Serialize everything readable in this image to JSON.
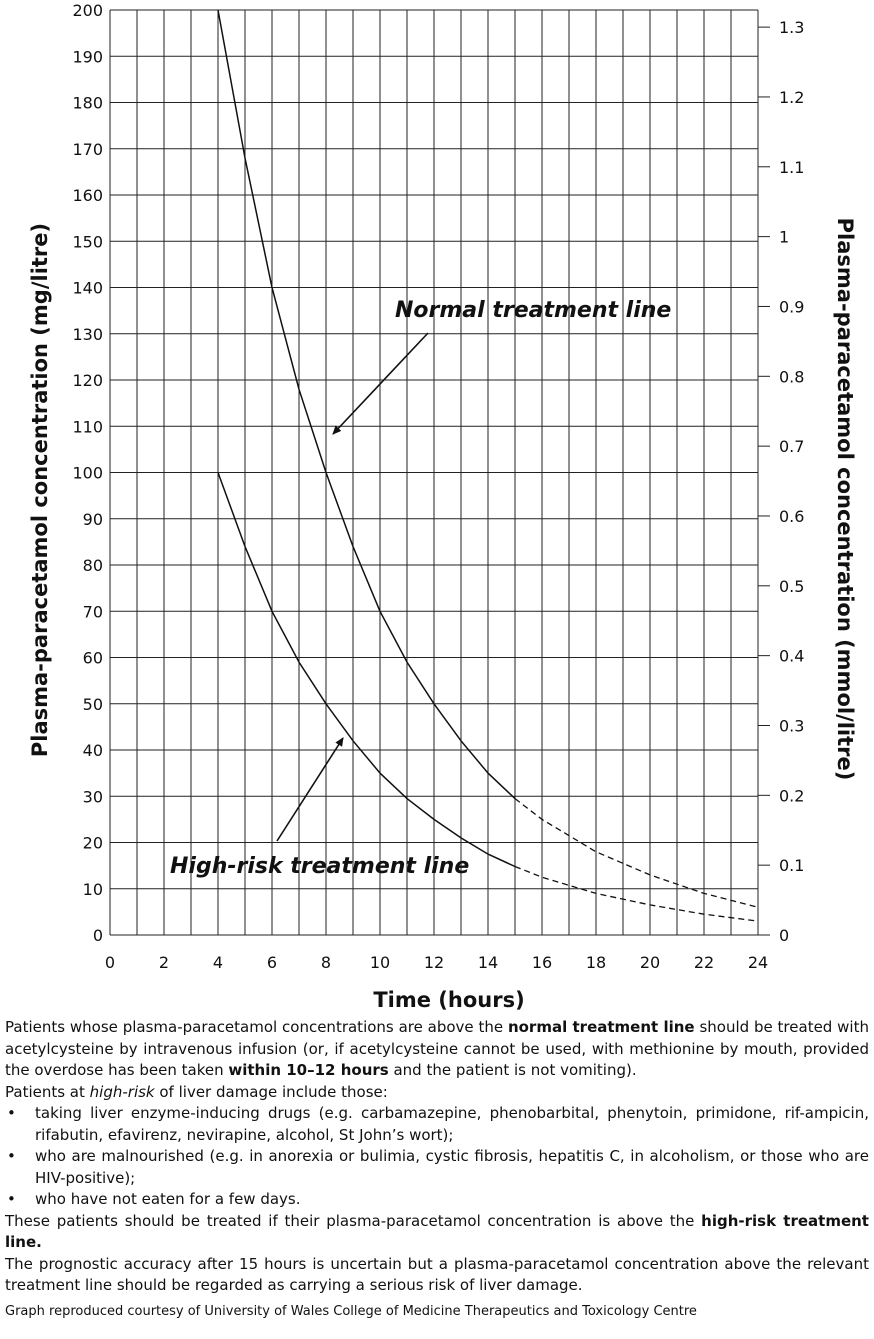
{
  "chart_data": {
    "type": "line",
    "xlabel": "Time (hours)",
    "ylabel_left": "Plasma-paracetamol concentration (mg/litre)",
    "ylabel_right": "Plasma-paracetamol concentration (mmol/litre)",
    "xlim": [
      0,
      24
    ],
    "ylim": [
      0,
      200
    ],
    "ylim_right": [
      0,
      1.3245
    ],
    "x_ticks": [
      "0",
      "2",
      "4",
      "6",
      "8",
      "10",
      "12",
      "14",
      "16",
      "18",
      "20",
      "22",
      "24"
    ],
    "y_ticks": [
      "0",
      "10",
      "20",
      "30",
      "40",
      "50",
      "60",
      "70",
      "80",
      "90",
      "100",
      "110",
      "120",
      "130",
      "140",
      "150",
      "160",
      "170",
      "180",
      "190",
      "200"
    ],
    "y_right_ticks": [
      "0",
      "0.1",
      "0.2",
      "0.3",
      "0.4",
      "0.5",
      "0.6",
      "0.7",
      "0.8",
      "0.9",
      "1",
      "1.1",
      "1.2",
      "1.3"
    ],
    "grid": true,
    "series": [
      {
        "name": "Normal treatment line",
        "x": [
          4,
          5,
          6,
          7,
          8,
          9,
          10,
          11,
          12,
          13,
          14,
          15
        ],
        "y": [
          200,
          168,
          140,
          118,
          100,
          84,
          70,
          59,
          50,
          42,
          35,
          29.5
        ],
        "extension": {
          "x": [
            15,
            16,
            18,
            20,
            22,
            24
          ],
          "y": [
            29.5,
            25,
            18,
            13,
            9,
            6
          ]
        }
      },
      {
        "name": "High-risk treatment line",
        "x": [
          4,
          5,
          6,
          7,
          8,
          9,
          10,
          11,
          12,
          13,
          14,
          15
        ],
        "y": [
          100,
          84,
          70,
          59,
          50,
          42,
          35,
          29.5,
          25,
          21,
          17.5,
          14.8
        ],
        "extension": {
          "x": [
            15,
            16,
            18,
            20,
            22,
            24
          ],
          "y": [
            14.8,
            12.5,
            9,
            6.5,
            4.5,
            3
          ]
        }
      }
    ]
  },
  "notes": {
    "p1": {
      "a": "Patients whose plasma-paracetamol concentrations are above the ",
      "b": "normal treatment line",
      "c": " should be treated with acetylcysteine by intravenous infusion (or, if acetylcysteine cannot be used, with methionine by mouth, provided the overdose has been taken ",
      "d": "within 10–12 hours",
      "e": " and the patient is not vomiting)."
    },
    "p2": {
      "a": "Patients at ",
      "b": "high-risk",
      "c": " of liver damage include those:"
    },
    "bullets": [
      "taking liver enzyme-inducing drugs (e.g. carbamazepine, phenobarbital, phenytoin, primidone, rif-ampicin, rifabutin, efavirenz, nevirapine, alcohol, St John’s wort);",
      "who are malnourished (e.g. in anorexia or bulimia, cystic fibrosis, hepatitis C, in alcoholism, or those who are HIV-positive);",
      "who have not eaten for a few days."
    ],
    "p3": {
      "a": "These patients should be treated if their plasma-paracetamol concentration is above the ",
      "b": "high-risk treatment line."
    },
    "p4": "The prognostic accuracy after 15 hours is uncertain but a plasma-paracetamol concentration above the relevant treatment line should be regarded as carrying a serious risk of liver damage.",
    "credit": "Graph reproduced courtesy of University of Wales College of Medicine Therapeutics and Toxicology Centre"
  }
}
